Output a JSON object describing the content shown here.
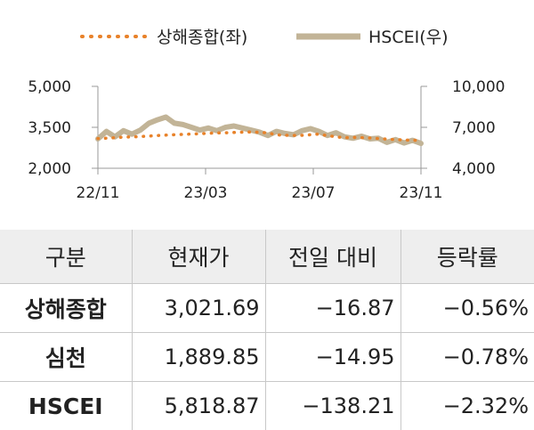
{
  "chart_data": {
    "type": "line",
    "legend_position": "top",
    "grid": false,
    "x_ticks": [
      "22/11",
      "23/03",
      "23/07",
      "23/11"
    ],
    "y_left": {
      "ticks": [
        "5,000",
        "3,500",
        "2,000"
      ],
      "range": [
        2000,
        5000
      ]
    },
    "y_right": {
      "ticks": [
        "10,000",
        "7,000",
        "4,000"
      ],
      "range": [
        4000,
        10000
      ]
    },
    "series": [
      {
        "name": "상해종합(좌)",
        "axis": "left",
        "style": "dotted",
        "color": "#e8822a",
        "x": [
          "22/11",
          "22/11",
          "22/12",
          "22/12",
          "23/01",
          "23/01",
          "23/02",
          "23/02",
          "23/03",
          "23/03",
          "23/04",
          "23/04",
          "23/05",
          "23/05",
          "23/06",
          "23/06",
          "23/07",
          "23/07",
          "23/08",
          "23/08",
          "23/09",
          "23/09",
          "23/10",
          "23/10",
          "23/11",
          "23/11"
        ],
        "values": [
          3090,
          3110,
          3140,
          3155,
          3180,
          3210,
          3230,
          3250,
          3270,
          3290,
          3300,
          3320,
          3330,
          3300,
          3220,
          3200,
          3210,
          3250,
          3180,
          3120,
          3130,
          3110,
          3080,
          3050,
          3030,
          3022
        ]
      },
      {
        "name": "HSCEI(우)",
        "axis": "right",
        "style": "solid",
        "color": "#c2b497",
        "x": [
          "22/11",
          "22/11",
          "22/11",
          "22/12",
          "22/12",
          "22/12",
          "23/01",
          "23/01",
          "23/01",
          "23/01",
          "23/02",
          "23/02",
          "23/02",
          "23/03",
          "23/03",
          "23/03",
          "23/04",
          "23/04",
          "23/04",
          "23/05",
          "23/05",
          "23/05",
          "23/06",
          "23/06",
          "23/06",
          "23/07",
          "23/07",
          "23/07",
          "23/08",
          "23/08",
          "23/08",
          "23/09",
          "23/09",
          "23/09",
          "23/10",
          "23/10",
          "23/10",
          "23/11",
          "23/11"
        ],
        "values": [
          6150,
          6700,
          6300,
          6750,
          6500,
          6800,
          7300,
          7550,
          7750,
          7300,
          7200,
          7000,
          6800,
          6950,
          6750,
          7000,
          7100,
          6950,
          6800,
          6650,
          6400,
          6700,
          6550,
          6450,
          6750,
          6900,
          6700,
          6400,
          6600,
          6300,
          6200,
          6350,
          6150,
          6200,
          5900,
          6100,
          5850,
          6050,
          5820
        ]
      }
    ]
  },
  "table": {
    "headers": [
      "구분",
      "현재가",
      "전일 대비",
      "등락률"
    ],
    "rows": [
      [
        "상해종합",
        "3,021.69",
        "-16.87",
        "-0.56%"
      ],
      [
        "심천",
        "1,889.85",
        "-14.95",
        "-0.78%"
      ],
      [
        "HSCEI",
        "5,818.87",
        "-138.21",
        "-2.32%"
      ]
    ]
  }
}
